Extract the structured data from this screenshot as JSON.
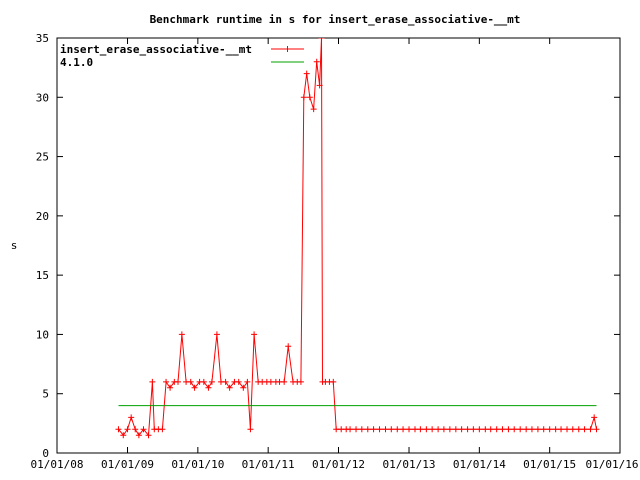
{
  "chart_data": {
    "type": "line",
    "title": "Benchmark runtime in s for insert_erase_associative-__mt",
    "xlabel": "",
    "ylabel": "s",
    "ylim": [
      0,
      35
    ],
    "xlim": [
      "2008-01-01",
      "2016-01-01"
    ],
    "x_ticks": [
      "01/01/08",
      "01/01/09",
      "01/01/10",
      "01/01/11",
      "01/01/12",
      "01/01/13",
      "01/01/14",
      "01/01/15",
      "01/01/16"
    ],
    "y_ticks": [
      0,
      5,
      10,
      15,
      20,
      25,
      30,
      35
    ],
    "grid": false,
    "legend_position": "top-left",
    "series": [
      {
        "name": "insert_erase_associative-__mt",
        "color": "#ff0000",
        "marker": "plus",
        "points": [
          [
            "2008-11-15",
            2
          ],
          [
            "2008-12-10",
            1.5
          ],
          [
            "2009-01-01",
            2
          ],
          [
            "2009-01-20",
            3
          ],
          [
            "2009-02-10",
            2
          ],
          [
            "2009-03-01",
            1.5
          ],
          [
            "2009-03-25",
            2
          ],
          [
            "2009-04-20",
            1.5
          ],
          [
            "2009-05-10",
            6
          ],
          [
            "2009-05-20",
            2
          ],
          [
            "2009-06-10",
            2
          ],
          [
            "2009-07-01",
            2
          ],
          [
            "2009-07-20",
            6
          ],
          [
            "2009-08-10",
            5.5
          ],
          [
            "2009-09-01",
            6
          ],
          [
            "2009-09-20",
            6
          ],
          [
            "2009-10-10",
            10
          ],
          [
            "2009-11-01",
            6
          ],
          [
            "2009-11-25",
            6
          ],
          [
            "2009-12-15",
            5.5
          ],
          [
            "2010-01-10",
            6
          ],
          [
            "2010-02-01",
            6
          ],
          [
            "2010-02-25",
            5.5
          ],
          [
            "2010-03-15",
            6
          ],
          [
            "2010-04-10",
            10
          ],
          [
            "2010-05-01",
            6
          ],
          [
            "2010-05-25",
            6
          ],
          [
            "2010-06-15",
            5.5
          ],
          [
            "2010-07-10",
            6
          ],
          [
            "2010-08-01",
            6
          ],
          [
            "2010-08-25",
            5.5
          ],
          [
            "2010-09-15",
            6
          ],
          [
            "2010-10-01",
            2
          ],
          [
            "2010-10-20",
            10
          ],
          [
            "2010-11-10",
            6
          ],
          [
            "2010-12-01",
            6
          ],
          [
            "2010-12-25",
            6
          ],
          [
            "2011-01-15",
            6
          ],
          [
            "2011-02-10",
            6
          ],
          [
            "2011-03-01",
            6
          ],
          [
            "2011-03-25",
            6
          ],
          [
            "2011-04-15",
            9
          ],
          [
            "2011-05-10",
            6
          ],
          [
            "2011-06-01",
            6
          ],
          [
            "2011-06-20",
            6
          ],
          [
            "2011-07-05",
            30
          ],
          [
            "2011-07-20",
            32
          ],
          [
            "2011-08-05",
            30
          ],
          [
            "2011-08-25",
            29
          ],
          [
            "2011-09-10",
            33
          ],
          [
            "2011-09-25",
            31
          ],
          [
            "2011-10-05",
            35
          ],
          [
            "2011-10-10",
            6
          ],
          [
            "2011-10-25",
            6
          ],
          [
            "2011-11-15",
            6
          ],
          [
            "2011-12-05",
            6
          ],
          [
            "2011-12-20",
            2
          ],
          [
            "2012-01-15",
            2
          ],
          [
            "2012-02-10",
            2
          ],
          [
            "2012-03-01",
            2
          ],
          [
            "2012-04-01",
            2
          ],
          [
            "2012-05-01",
            2
          ],
          [
            "2012-06-01",
            2
          ],
          [
            "2012-07-01",
            2
          ],
          [
            "2012-08-01",
            2
          ],
          [
            "2012-09-01",
            2
          ],
          [
            "2012-10-01",
            2
          ],
          [
            "2012-11-01",
            2
          ],
          [
            "2012-12-01",
            2
          ],
          [
            "2013-01-01",
            2
          ],
          [
            "2013-02-01",
            2
          ],
          [
            "2013-03-01",
            2
          ],
          [
            "2013-04-01",
            2
          ],
          [
            "2013-05-01",
            2
          ],
          [
            "2013-06-01",
            2
          ],
          [
            "2013-07-01",
            2
          ],
          [
            "2013-08-01",
            2
          ],
          [
            "2013-09-01",
            2
          ],
          [
            "2013-10-01",
            2
          ],
          [
            "2013-11-01",
            2
          ],
          [
            "2013-12-01",
            2
          ],
          [
            "2014-01-01",
            2
          ],
          [
            "2014-02-01",
            2
          ],
          [
            "2014-03-01",
            2
          ],
          [
            "2014-04-01",
            2
          ],
          [
            "2014-05-01",
            2
          ],
          [
            "2014-06-01",
            2
          ],
          [
            "2014-07-01",
            2
          ],
          [
            "2014-08-01",
            2
          ],
          [
            "2014-09-01",
            2
          ],
          [
            "2014-10-01",
            2
          ],
          [
            "2014-11-01",
            2
          ],
          [
            "2014-12-01",
            2
          ],
          [
            "2015-01-01",
            2
          ],
          [
            "2015-02-01",
            2
          ],
          [
            "2015-03-01",
            2
          ],
          [
            "2015-04-01",
            2
          ],
          [
            "2015-05-01",
            2
          ],
          [
            "2015-06-01",
            2
          ],
          [
            "2015-07-01",
            2
          ],
          [
            "2015-08-01",
            2
          ],
          [
            "2015-08-20",
            3
          ],
          [
            "2015-09-01",
            2
          ]
        ]
      },
      {
        "name": "4.1.0",
        "color": "#00a000",
        "marker": "none",
        "points": [
          [
            "2008-11-15",
            4
          ],
          [
            "2015-09-01",
            4
          ]
        ]
      }
    ]
  }
}
